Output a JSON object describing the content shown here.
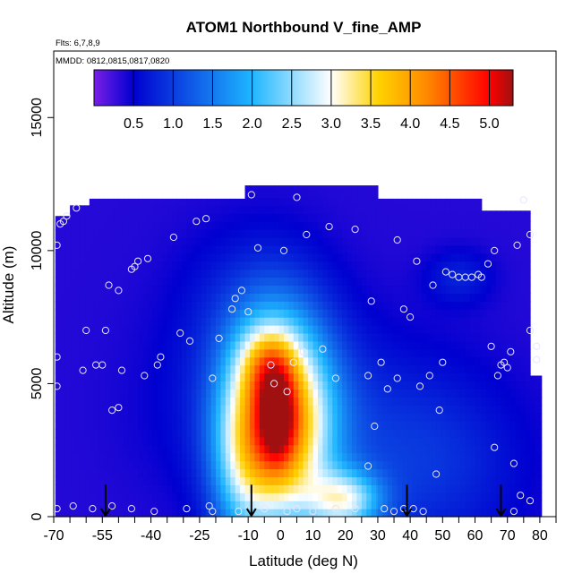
{
  "chart_data": {
    "type": "heatmap",
    "title": "ATOM1 Northbound V_fine_AMP",
    "annotations": [
      "Flts: 6,7,8,9",
      "MMDD: 0812,0815,0817,0820"
    ],
    "xlabel": "Latitude (deg N)",
    "ylabel": "Altitude (m)",
    "xlim": [
      -70,
      85
    ],
    "ylim": [
      0,
      17500
    ],
    "x_ticks": [
      -70,
      -55,
      -40,
      -25,
      -10,
      0,
      10,
      20,
      30,
      40,
      50,
      60,
      70,
      80
    ],
    "x_tick_labels": [
      "-70",
      "-55",
      "-40",
      "-25",
      "-10",
      "0",
      "10",
      "20",
      "30",
      "40",
      "50",
      "60",
      "70",
      "80"
    ],
    "x_minor_ticks": [
      -65,
      -60,
      -50,
      -45,
      -35,
      -30,
      -20,
      -15,
      -5,
      5,
      15,
      25,
      35,
      45,
      55,
      65,
      75,
      85
    ],
    "y_ticks": [
      0,
      5000,
      10000,
      15000
    ],
    "y_tick_labels": [
      "0",
      "5000",
      "10000",
      "15000"
    ],
    "colorbar": {
      "range": [
        0,
        5.3
      ],
      "ticks": [
        0.5,
        1.0,
        1.5,
        2.0,
        2.5,
        3.0,
        3.5,
        4.0,
        4.5,
        5.0
      ],
      "tick_labels": [
        "0.5",
        "1.0",
        "1.5",
        "2.0",
        "2.5",
        "3.0",
        "3.5",
        "4.0",
        "4.5",
        "5.0"
      ],
      "colors": [
        "#7a1fe6",
        "#0000d0",
        "#1eb6ff",
        "#ffffff",
        "#ffd200",
        "#ff8a00",
        "#ff0000",
        "#a01010"
      ],
      "stops": [
        0,
        0.5,
        2.0,
        3.0,
        3.6,
        4.2,
        5.0,
        5.3
      ]
    },
    "grid": false,
    "flight_arrows_lat": [
      -54,
      -9,
      39,
      68
    ],
    "field": {
      "alt_top_segments": [
        {
          "lat_start": -69.5,
          "lat_end": -65,
          "top": 11300
        },
        {
          "lat_start": -65,
          "lat_end": -59,
          "top": 11700
        },
        {
          "lat_start": -59,
          "lat_end": -11,
          "top": 11950
        },
        {
          "lat_start": -11,
          "lat_end": 30,
          "top": 12450
        },
        {
          "lat_start": 30,
          "lat_end": 62,
          "top": 11950
        },
        {
          "lat_start": 62,
          "lat_end": 77,
          "top": 11500
        },
        {
          "lat_start": 77,
          "lat_end": 80.5,
          "top": 5300
        }
      ],
      "background_value": 0.35,
      "features": [
        {
          "lat": 0,
          "alt": 3500,
          "amp": 3.6,
          "lat_w": 11,
          "alt_w": 2700,
          "tilt": 0.0007
        },
        {
          "lat": -1,
          "alt": 3800,
          "amp": 1.3,
          "lat_w": 4,
          "alt_w": 1300,
          "tilt": 0.0007
        },
        {
          "lat": 20,
          "alt": 600,
          "amp": 2.0,
          "lat_w": 8,
          "alt_w": 800,
          "tilt": 0
        },
        {
          "lat": -12,
          "alt": 2000,
          "amp": 1.1,
          "lat_w": 7,
          "alt_w": 2500,
          "tilt": 0
        },
        {
          "lat": -4,
          "alt": 5800,
          "amp": 1.1,
          "lat_w": 6,
          "alt_w": 1000,
          "tilt": 0
        },
        {
          "lat": 45,
          "alt": 2000,
          "amp": 0.55,
          "lat_w": 20,
          "alt_w": 2500,
          "tilt": 0
        },
        {
          "lat": -10,
          "alt": 8000,
          "amp": 0.35,
          "lat_w": 15,
          "alt_w": 2000,
          "tilt": 0
        },
        {
          "lat": 55,
          "alt": 9000,
          "amp": 0.4,
          "lat_w": 7,
          "alt_w": 700,
          "tilt": 0
        },
        {
          "lat": 0,
          "alt": 4000,
          "amp": 0.5,
          "lat_w": 24,
          "alt_w": 2500,
          "tilt": 0
        }
      ]
    },
    "sample_points": [
      [
        -69,
        300
      ],
      [
        -69,
        6000
      ],
      [
        -69,
        4900
      ],
      [
        -69,
        10200
      ],
      [
        -68,
        11000
      ],
      [
        -67,
        11100
      ],
      [
        -66,
        11300
      ],
      [
        -63,
        11600
      ],
      [
        -61,
        5500
      ],
      [
        -57,
        5700
      ],
      [
        -55,
        5700
      ],
      [
        -60,
        7000
      ],
      [
        -54,
        7000
      ],
      [
        -53,
        8700
      ],
      [
        -50,
        8500
      ],
      [
        -50,
        4100
      ],
      [
        -52,
        4000
      ],
      [
        -49,
        5500
      ],
      [
        -46,
        9300
      ],
      [
        -45,
        9400
      ],
      [
        -44,
        9600
      ],
      [
        -41,
        9700
      ],
      [
        -37,
        6000
      ],
      [
        -38,
        5700
      ],
      [
        -33,
        10500
      ],
      [
        -31,
        6900
      ],
      [
        -28,
        6600
      ],
      [
        -26,
        11100
      ],
      [
        -23,
        11200
      ],
      [
        -19,
        6700
      ],
      [
        -21,
        5200
      ],
      [
        -15,
        7800
      ],
      [
        -14,
        8200
      ],
      [
        -12,
        8500
      ],
      [
        -10,
        7700
      ],
      [
        -7,
        10100
      ],
      [
        -3,
        5700
      ],
      [
        -2,
        5000
      ],
      [
        2,
        4700
      ],
      [
        4,
        5800
      ],
      [
        7,
        6200
      ],
      [
        1,
        10000
      ],
      [
        5,
        12000
      ],
      [
        8,
        10600
      ],
      [
        15,
        10900
      ],
      [
        13,
        6300
      ],
      [
        17,
        5200
      ],
      [
        23,
        10800
      ],
      [
        27,
        5300
      ],
      [
        28,
        8100
      ],
      [
        31,
        5800
      ],
      [
        33,
        4800
      ],
      [
        36,
        5200
      ],
      [
        36,
        10400
      ],
      [
        38,
        7800
      ],
      [
        40,
        7500
      ],
      [
        42,
        9600
      ],
      [
        43,
        4900
      ],
      [
        46,
        5300
      ],
      [
        47,
        8700
      ],
      [
        49,
        4000
      ],
      [
        50,
        5800
      ],
      [
        51,
        9200
      ],
      [
        53,
        9100
      ],
      [
        55,
        9000
      ],
      [
        57,
        9000
      ],
      [
        59,
        9000
      ],
      [
        61,
        9100
      ],
      [
        62,
        9000
      ],
      [
        64,
        9500
      ],
      [
        65,
        6400
      ],
      [
        66,
        10000
      ],
      [
        67,
        5300
      ],
      [
        68,
        5700
      ],
      [
        69,
        5800
      ],
      [
        70,
        5600
      ],
      [
        71,
        6200
      ],
      [
        73,
        10200
      ],
      [
        75,
        11900
      ],
      [
        77,
        7000
      ],
      [
        77,
        10600
      ],
      [
        79,
        6400
      ],
      [
        79,
        5900
      ],
      [
        66,
        2600
      ],
      [
        72,
        2000
      ],
      [
        74,
        800
      ],
      [
        77,
        600
      ],
      [
        29,
        3400
      ],
      [
        27,
        1900
      ],
      [
        48,
        1600
      ],
      [
        -58,
        300
      ],
      [
        -52,
        400
      ],
      [
        -46,
        300
      ],
      [
        -39,
        200
      ],
      [
        -29,
        300
      ],
      [
        -22,
        400
      ],
      [
        -21,
        200
      ],
      [
        -13,
        200
      ],
      [
        -5,
        300
      ],
      [
        2,
        200
      ],
      [
        5,
        300
      ],
      [
        10,
        200
      ],
      [
        17,
        300
      ],
      [
        23,
        300
      ],
      [
        32,
        300
      ],
      [
        35,
        200
      ],
      [
        38,
        300
      ],
      [
        41,
        300
      ],
      [
        44,
        200
      ],
      [
        72,
        200
      ],
      [
        -64,
        400
      ],
      [
        -9,
        12100
      ],
      [
        -42,
        5300
      ]
    ]
  }
}
